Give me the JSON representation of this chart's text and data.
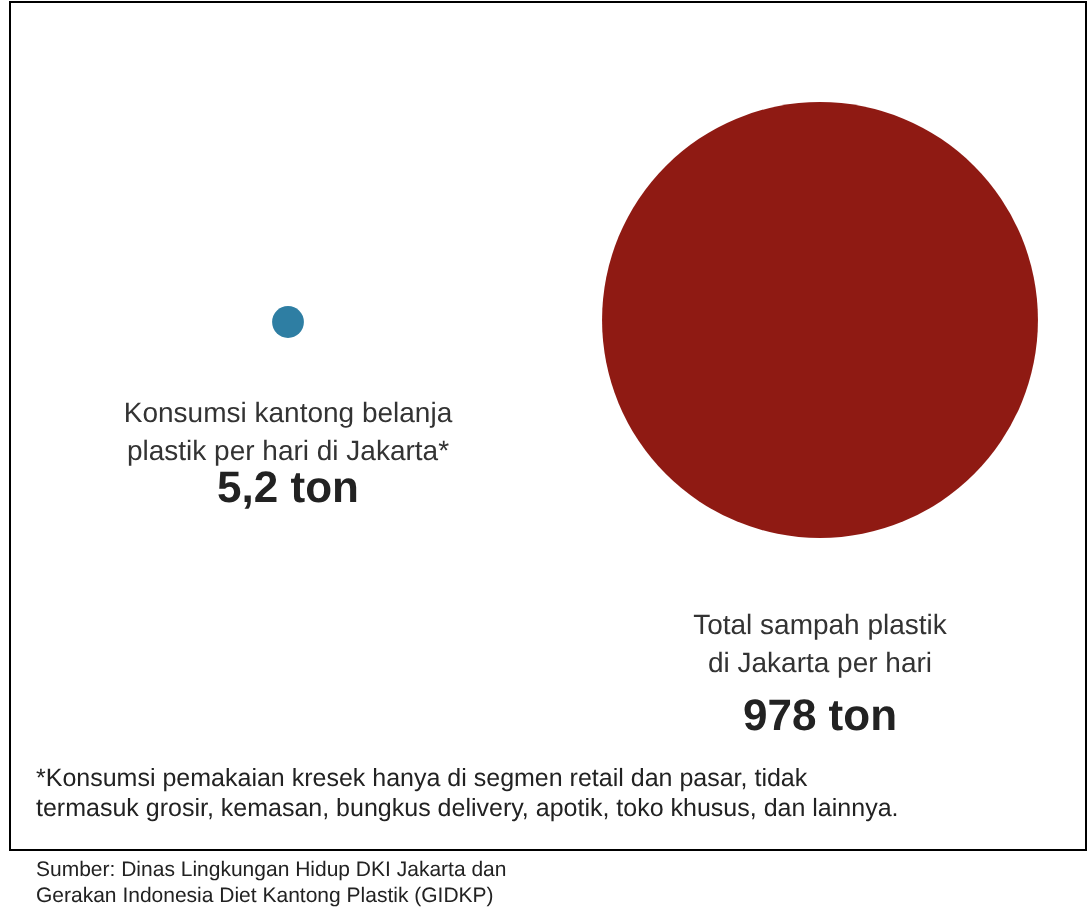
{
  "chart_data": {
    "type": "other",
    "categories": [
      "Konsumsi kantong belanja\nplastik per hari di Jakarta*",
      "Total sampah plastik\ndi Jakarta per hari"
    ],
    "values": [
      5.2,
      978
    ],
    "colors": [
      "#2e7ea3",
      "#8f1a13"
    ],
    "value_labels": [
      "5,2 ton",
      "978 ton"
    ],
    "annotations": [
      "*Konsumsi pemakaian kresek hanya di segmen retail dan pasar, tidak\ntermasuk grosir, kemasan, bungkus delivery, apotik, toko khusus, dan lainnya.",
      "Sumber: Dinas Lingkungan Hidup DKI Jakarta dan\nGerakan Indonesia Diet Kantong Plastik (GIDKP)"
    ]
  }
}
